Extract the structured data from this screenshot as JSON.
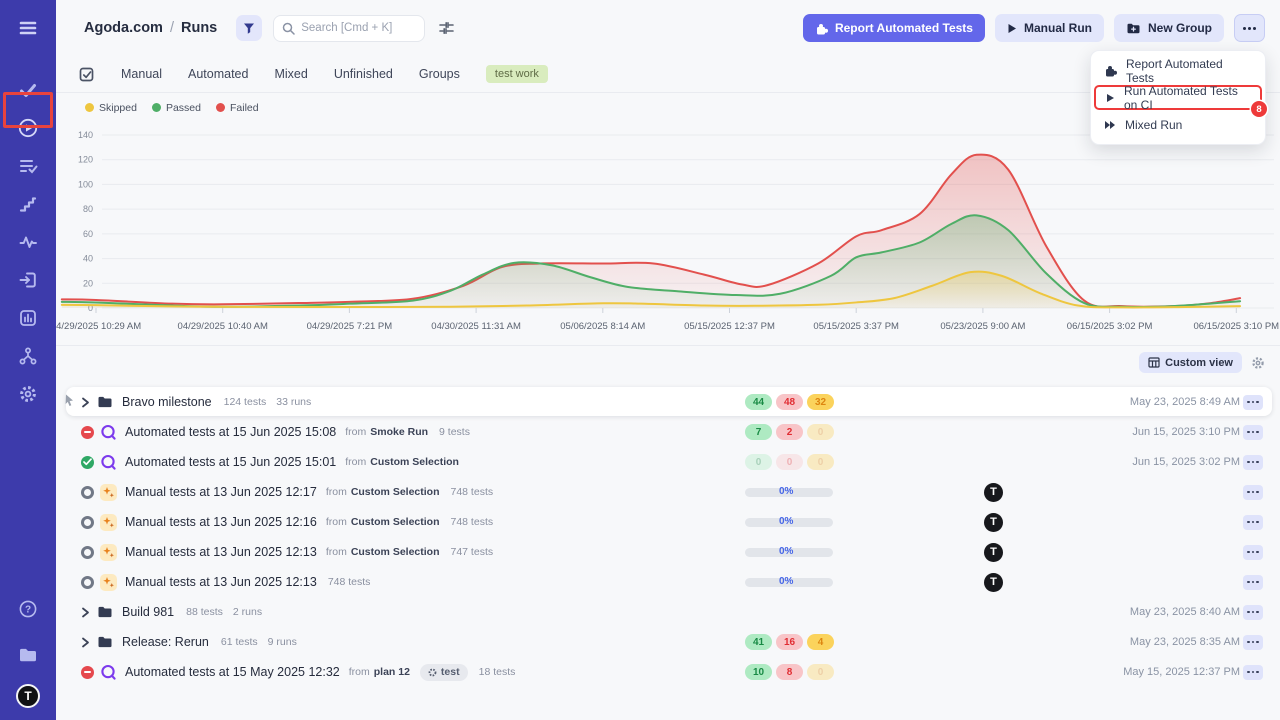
{
  "app": {
    "accent": "#6367ea",
    "annotation_red": "#ee3a3a",
    "sidebar_bg": "#3d3bab"
  },
  "sidebar": {
    "active_item": "runs",
    "items": [
      "menu",
      "tests",
      "runs",
      "plans",
      "steps",
      "pulse",
      "import",
      "reports",
      "branches",
      "settings"
    ],
    "bottom_items": [
      "help",
      "projects",
      "logo"
    ],
    "logo_letter": "T"
  },
  "header": {
    "breadcrumb": {
      "project": "Agoda.com",
      "separator": "/",
      "page": "Runs"
    },
    "search": {
      "placeholder": "Search [Cmd + K]",
      "value": ""
    },
    "buttons": {
      "report_automated": "Report Automated Tests",
      "manual_run": "Manual Run",
      "new_group": "New Group"
    }
  },
  "menu": {
    "items": [
      {
        "label": "Report Automated Tests",
        "icon": "puzzle-icon",
        "highlighted": false
      },
      {
        "label": "Run Automated Tests on CI",
        "icon": "play-icon",
        "highlighted": true,
        "badge": "8"
      },
      {
        "label": "Mixed Run",
        "icon": "fast-forward-icon",
        "highlighted": false
      }
    ]
  },
  "tabs": {
    "items": [
      "Manual",
      "Automated",
      "Mixed",
      "Unfinished",
      "Groups"
    ],
    "tag": "test work"
  },
  "legend": [
    {
      "label": "Skipped",
      "color": "#eec63f"
    },
    {
      "label": "Passed",
      "color": "#4fae67"
    },
    {
      "label": "Failed",
      "color": "#e2504d"
    }
  ],
  "chart_data": {
    "type": "area",
    "title": "",
    "xlabel": "",
    "ylabel": "",
    "ylim": [
      0,
      140
    ],
    "yticks": [
      0,
      20,
      40,
      60,
      80,
      100,
      120,
      140
    ],
    "grid": true,
    "legend_position": "top-left",
    "x_unit": "tick_index",
    "x_tick_labels": [
      "04/29/2025 10:29 AM",
      "04/29/2025 10:40 AM",
      "04/29/2025 7:21 PM",
      "04/30/2025 11:31 AM",
      "05/06/2025 8:14 AM",
      "05/15/2025 12:37 PM",
      "05/15/2025 3:37 PM",
      "05/23/2025 9:00 AM",
      "06/15/2025 3:02 PM",
      "06/15/2025 3:10 PM"
    ],
    "series": [
      {
        "name": "Failed",
        "color": "#e2504d",
        "points": [
          [
            -0.27,
            7
          ],
          [
            0,
            6.5
          ],
          [
            0.6,
            3.5
          ],
          [
            1,
            3
          ],
          [
            1.6,
            4
          ],
          [
            2,
            5
          ],
          [
            2.5,
            7.5
          ],
          [
            2.9,
            18
          ],
          [
            3.2,
            33
          ],
          [
            3.5,
            36
          ],
          [
            4,
            36
          ],
          [
            4.4,
            36
          ],
          [
            4.8,
            27
          ],
          [
            5.1,
            19
          ],
          [
            5.3,
            18.5
          ],
          [
            5.7,
            36
          ],
          [
            6,
            58
          ],
          [
            6.2,
            63
          ],
          [
            6.5,
            76
          ],
          [
            6.75,
            108
          ],
          [
            6.95,
            124
          ],
          [
            7.2,
            112
          ],
          [
            7.5,
            50
          ],
          [
            7.8,
            6
          ],
          [
            8.1,
            1.5
          ],
          [
            8.5,
            1.5
          ],
          [
            8.8,
            4
          ],
          [
            9.03,
            8
          ]
        ]
      },
      {
        "name": "Passed",
        "color": "#4fae67",
        "points": [
          [
            -0.27,
            5
          ],
          [
            0,
            4.5
          ],
          [
            0.6,
            2
          ],
          [
            1,
            1
          ],
          [
            1.6,
            2
          ],
          [
            2,
            3.5
          ],
          [
            2.5,
            6
          ],
          [
            2.8,
            14
          ],
          [
            3.05,
            27
          ],
          [
            3.3,
            36.5
          ],
          [
            3.6,
            34.5
          ],
          [
            3.9,
            25
          ],
          [
            4.2,
            17
          ],
          [
            4.6,
            13.5
          ],
          [
            5.05,
            10.5
          ],
          [
            5.4,
            11.5
          ],
          [
            5.8,
            26
          ],
          [
            6,
            41
          ],
          [
            6.2,
            45
          ],
          [
            6.5,
            53
          ],
          [
            6.75,
            68
          ],
          [
            6.95,
            75
          ],
          [
            7.2,
            63
          ],
          [
            7.5,
            28
          ],
          [
            7.8,
            4
          ],
          [
            8.1,
            1
          ],
          [
            8.5,
            1.5
          ],
          [
            9.03,
            5.5
          ]
        ]
      },
      {
        "name": "Skipped",
        "color": "#eec63f",
        "points": [
          [
            -0.27,
            2.5
          ],
          [
            0,
            2.3
          ],
          [
            0.6,
            1.3
          ],
          [
            1.2,
            0.9
          ],
          [
            2,
            0.8
          ],
          [
            2.8,
            1
          ],
          [
            3.4,
            2
          ],
          [
            4,
            3.8
          ],
          [
            4.3,
            3.5
          ],
          [
            4.8,
            2
          ],
          [
            5.2,
            1.8
          ],
          [
            5.7,
            2.6
          ],
          [
            6,
            4.5
          ],
          [
            6.3,
            8
          ],
          [
            6.6,
            18
          ],
          [
            6.9,
            29
          ],
          [
            7.15,
            26
          ],
          [
            7.45,
            12
          ],
          [
            7.75,
            2
          ],
          [
            8.1,
            0.5
          ],
          [
            8.6,
            0.8
          ],
          [
            9.03,
            1.5
          ]
        ]
      }
    ]
  },
  "toolbar": {
    "custom_view": "Custom view"
  },
  "table": {
    "rows": [
      {
        "type": "group",
        "cursor": true,
        "card": true,
        "title": "Bravo milestone",
        "meta": [
          "124 tests",
          "33 runs"
        ],
        "badges": [
          {
            "value": "44",
            "color": "green"
          },
          {
            "value": "48",
            "color": "red"
          },
          {
            "value": "32",
            "color": "yellow"
          }
        ],
        "date": "May 23, 2025 8:49 AM"
      },
      {
        "type": "run",
        "status": "failed",
        "kind": "automated",
        "title": "Automated tests at 15 Jun 2025 15:08",
        "from": "Smoke Run",
        "tests": "9 tests",
        "badges": [
          {
            "value": "7",
            "color": "green"
          },
          {
            "value": "2",
            "color": "red"
          },
          {
            "value": "0",
            "color": "yellow",
            "faded": true
          }
        ],
        "date": "Jun 15, 2025 3:10 PM"
      },
      {
        "type": "run",
        "status": "passed",
        "kind": "automated",
        "title": "Automated tests at 15 Jun 2025 15:01",
        "from": "Custom Selection",
        "badges": [
          {
            "value": "0",
            "color": "green",
            "faded": true
          },
          {
            "value": "0",
            "color": "red",
            "faded": true
          },
          {
            "value": "0",
            "color": "yellow",
            "faded": true
          }
        ],
        "date": "Jun 15, 2025 3:02 PM"
      },
      {
        "type": "run",
        "status": "progress",
        "kind": "manual",
        "title": "Manual tests at 13 Jun 2025 12:17",
        "from": "Custom Selection",
        "tests": "748 tests",
        "progress": "0%",
        "avatar": "T"
      },
      {
        "type": "run",
        "status": "progress",
        "kind": "manual",
        "title": "Manual tests at 13 Jun 2025 12:16",
        "from": "Custom Selection",
        "tests": "748 tests",
        "progress": "0%",
        "avatar": "T"
      },
      {
        "type": "run",
        "status": "progress",
        "kind": "manual",
        "title": "Manual tests at 13 Jun 2025 12:13",
        "from": "Custom Selection",
        "tests": "747 tests",
        "progress": "0%",
        "avatar": "T"
      },
      {
        "type": "run",
        "status": "progress",
        "kind": "manual",
        "title": "Manual tests at 13 Jun 2025 12:13",
        "tests": "748 tests",
        "progress": "0%",
        "avatar": "T"
      },
      {
        "type": "group",
        "title": "Build 981",
        "meta": [
          "88 tests",
          "2 runs"
        ],
        "date": "May 23, 2025 8:40 AM"
      },
      {
        "type": "group",
        "title": "Release: Rerun",
        "meta": [
          "61 tests",
          "9 runs"
        ],
        "badges": [
          {
            "value": "41",
            "color": "green"
          },
          {
            "value": "16",
            "color": "red"
          },
          {
            "value": "4",
            "color": "yellow"
          }
        ],
        "date": "May 23, 2025 8:35 AM"
      },
      {
        "type": "run",
        "status": "failed",
        "kind": "automated",
        "title": "Automated tests at 15 May 2025 12:32",
        "from": "plan 12",
        "tag": "test",
        "tests": "18 tests",
        "badges": [
          {
            "value": "10",
            "color": "green"
          },
          {
            "value": "8",
            "color": "red"
          },
          {
            "value": "0",
            "color": "yellow",
            "faded": true
          }
        ],
        "date": "May 15, 2025 12:37 PM"
      }
    ]
  }
}
